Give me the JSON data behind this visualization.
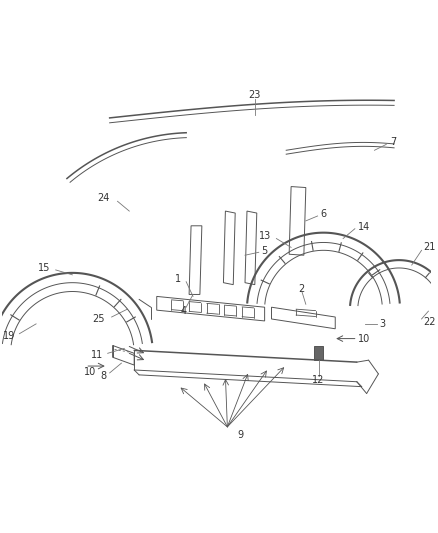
{
  "bg_color": "#ffffff",
  "line_color": "#555555",
  "label_color": "#333333",
  "figsize": [
    4.38,
    5.33
  ],
  "dpi": 100,
  "label_fs": 7.0
}
